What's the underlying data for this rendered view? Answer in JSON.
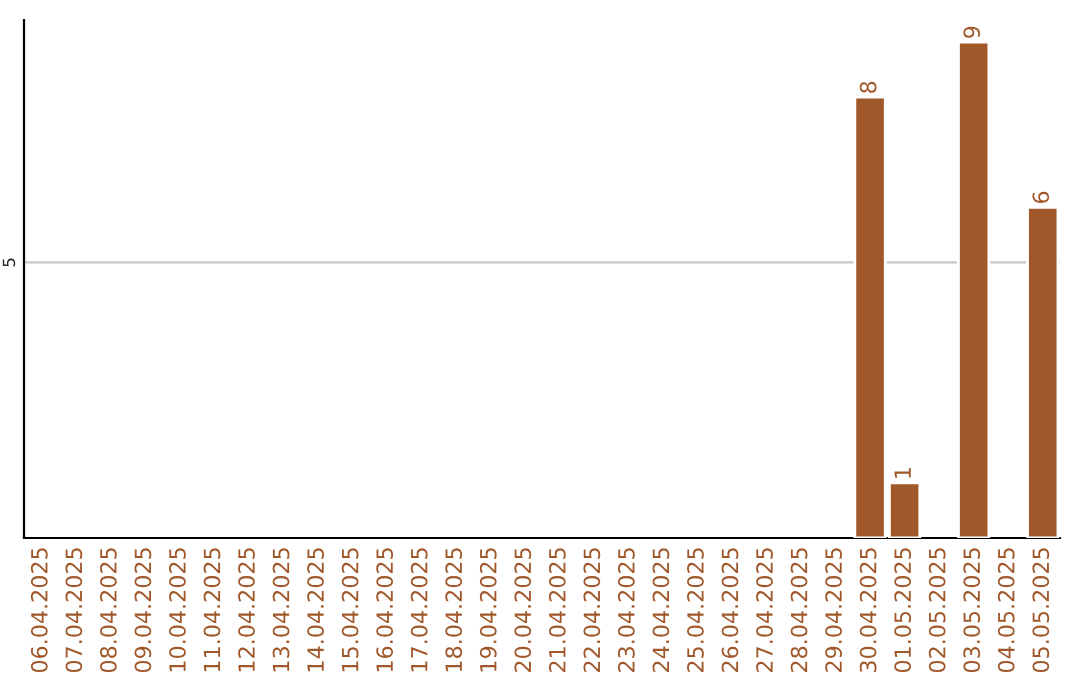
{
  "chart_data": {
    "type": "bar",
    "categories": [
      "06.04.2025",
      "07.04.2025",
      "08.04.2025",
      "09.04.2025",
      "10.04.2025",
      "11.04.2025",
      "12.04.2025",
      "13.04.2025",
      "14.04.2025",
      "15.04.2025",
      "16.04.2025",
      "17.04.2025",
      "18.04.2025",
      "19.04.2025",
      "20.04.2025",
      "21.04.2025",
      "22.04.2025",
      "23.04.2025",
      "24.04.2025",
      "25.04.2025",
      "26.04.2025",
      "27.04.2025",
      "28.04.2025",
      "29.04.2025",
      "30.04.2025",
      "01.05.2025",
      "02.05.2025",
      "03.05.2025",
      "04.05.2025",
      "05.05.2025"
    ],
    "values": [
      null,
      null,
      null,
      null,
      null,
      null,
      null,
      null,
      null,
      null,
      null,
      null,
      null,
      null,
      null,
      null,
      null,
      null,
      null,
      null,
      null,
      null,
      null,
      null,
      8,
      1,
      null,
      9,
      null,
      6
    ],
    "data_labels": true,
    "color": "#a0582a",
    "ylim": [
      0,
      9.4
    ],
    "yticks": [
      5
    ],
    "grid": "y",
    "legend": false
  }
}
